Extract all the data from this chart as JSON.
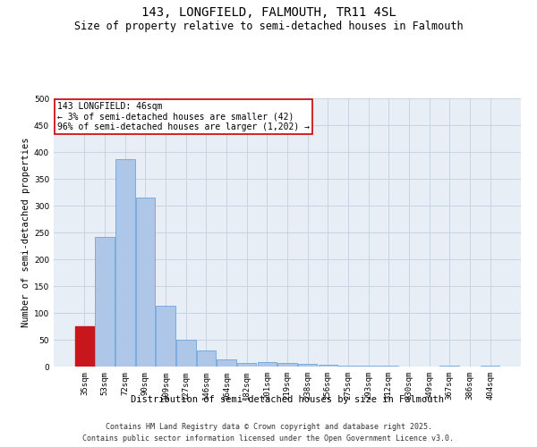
{
  "title": "143, LONGFIELD, FALMOUTH, TR11 4SL",
  "subtitle": "Size of property relative to semi-detached houses in Falmouth",
  "xlabel": "Distribution of semi-detached houses by size in Falmouth",
  "ylabel": "Number of semi-detached properties",
  "categories": [
    "35sqm",
    "53sqm",
    "72sqm",
    "90sqm",
    "109sqm",
    "127sqm",
    "146sqm",
    "164sqm",
    "182sqm",
    "201sqm",
    "219sqm",
    "238sqm",
    "256sqm",
    "275sqm",
    "293sqm",
    "312sqm",
    "330sqm",
    "349sqm",
    "367sqm",
    "386sqm",
    "404sqm"
  ],
  "values": [
    75,
    242,
    387,
    315,
    113,
    50,
    30,
    14,
    6,
    8,
    7,
    5,
    3,
    2,
    1,
    1,
    0,
    0,
    1,
    0,
    1
  ],
  "highlight_index": 0,
  "highlight_color": "#c8161d",
  "bar_color": "#aec6e8",
  "bar_edge_color": "#5b9bd5",
  "highlight_bar_edge_color": "#c8161d",
  "background_color": "#ffffff",
  "plot_bg_color": "#e8eef5",
  "grid_color": "#c8d4e4",
  "annotation_text": "143 LONGFIELD: 46sqm\n← 3% of semi-detached houses are smaller (42)\n96% of semi-detached houses are larger (1,202) →",
  "annotation_box_color": "#ffffff",
  "annotation_box_edge_color": "#cc0000",
  "footer_line1": "Contains HM Land Registry data © Crown copyright and database right 2025.",
  "footer_line2": "Contains public sector information licensed under the Open Government Licence v3.0.",
  "ylim": [
    0,
    500
  ],
  "yticks": [
    0,
    50,
    100,
    150,
    200,
    250,
    300,
    350,
    400,
    450,
    500
  ],
  "title_fontsize": 10,
  "subtitle_fontsize": 8.5,
  "axis_label_fontsize": 7.5,
  "tick_fontsize": 6.5,
  "annotation_fontsize": 7,
  "footer_fontsize": 6
}
